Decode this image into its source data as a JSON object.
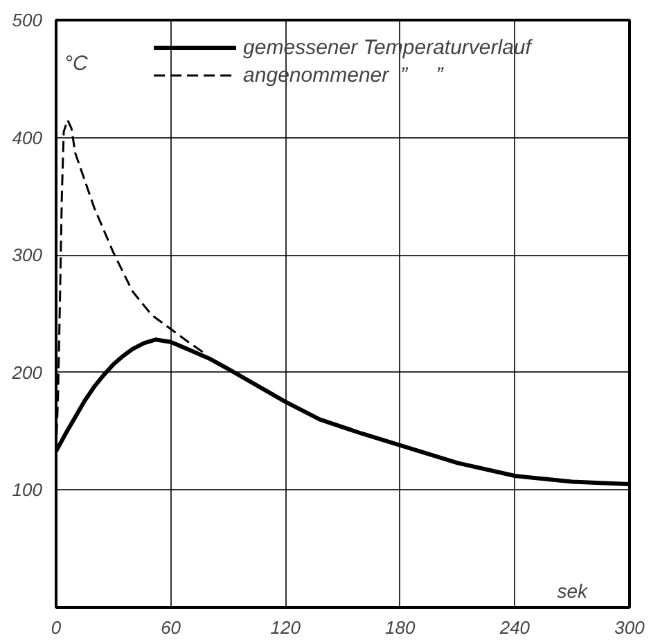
{
  "chart_data": {
    "type": "line",
    "xlabel": "sek",
    "ylabel": "°C",
    "xlim": [
      0,
      300
    ],
    "ylim": [
      0,
      500
    ],
    "xticks": [
      0,
      60,
      120,
      180,
      240,
      300
    ],
    "yticks": [
      100,
      200,
      300,
      400,
      500
    ],
    "grid": true,
    "legend": "top",
    "marker": "none",
    "series": [
      {
        "name": "gemessener Temperaturverlauf",
        "color": "#000000",
        "line_style": "solid",
        "x": [
          0,
          5,
          10,
          15,
          20,
          25,
          30,
          35,
          40,
          46,
          52,
          60,
          70,
          80,
          90,
          105,
          120,
          138,
          160,
          180,
          210,
          240,
          270,
          300
        ],
        "values": [
          133,
          148,
          162,
          176,
          188,
          198,
          207,
          214,
          220,
          225,
          228,
          226,
          219,
          212,
          203,
          189,
          175,
          160,
          148,
          138,
          123,
          112,
          107,
          105
        ]
      },
      {
        "name": "angenommener  ”     ”",
        "color": "#000000",
        "line_style": "dashed",
        "x": [
          0,
          1,
          2,
          3,
          4,
          6,
          8,
          10,
          20,
          30,
          40,
          50,
          60,
          70,
          78
        ],
        "values": [
          133,
          180,
          260,
          350,
          405,
          415,
          408,
          387,
          340,
          302,
          269,
          249,
          237,
          225,
          216
        ]
      }
    ]
  }
}
